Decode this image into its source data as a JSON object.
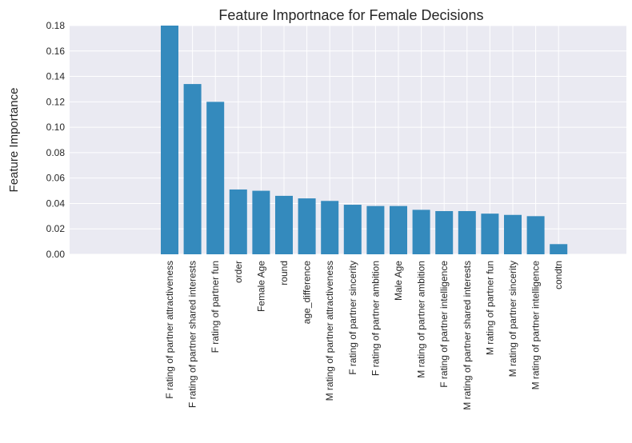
{
  "chart_data": {
    "type": "bar",
    "title": "Feature Importnace for Female Decisions",
    "xlabel": "",
    "ylabel": "Feature Importance",
    "ylim": [
      0,
      0.18
    ],
    "yticks": [
      "0.00",
      "0.02",
      "0.04",
      "0.06",
      "0.08",
      "0.10",
      "0.12",
      "0.14",
      "0.16",
      "0.18"
    ],
    "grid": true,
    "bar_color": "#348abd",
    "background_color": "#eaeaf2",
    "categories": [
      "F rating of partner attractiveness",
      "F rating of partner shared interests",
      "F rating of partner fun",
      "order",
      "Female Age",
      "round",
      "age_difference",
      "M rating of partner attractiveness",
      "F rating of partner sincerity",
      "F rating of partner ambition",
      "Male Age",
      "M rating of partner ambition",
      "F rating of partner intelligence",
      "M rating of partner shared interests",
      "M rating of partner fun",
      "M rating of partner sincerity",
      "M rating of partner intelligence",
      "condtn"
    ],
    "values": [
      0.18,
      0.134,
      0.12,
      0.051,
      0.05,
      0.046,
      0.044,
      0.042,
      0.039,
      0.038,
      0.038,
      0.035,
      0.034,
      0.034,
      0.032,
      0.031,
      0.03,
      0.008
    ]
  }
}
